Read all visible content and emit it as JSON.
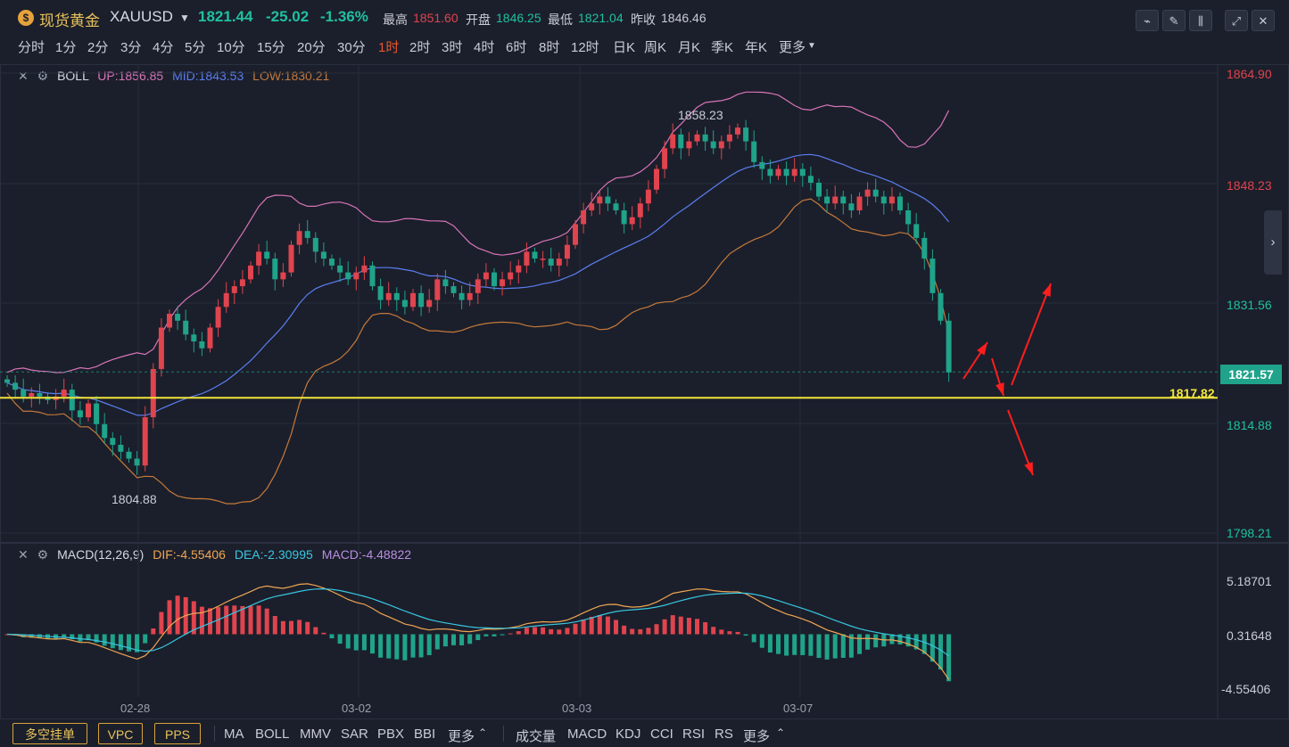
{
  "header": {
    "coin_icon": "coin-icon",
    "name": "现货黄金",
    "symbol": "XAUUSD",
    "price": "1821.44",
    "change": "-25.02",
    "change_pct": "-1.36%",
    "high_label": "最高",
    "high": "1851.60",
    "open_label": "开盘",
    "open": "1846.25",
    "low_label": "最低",
    "low": "1821.04",
    "prev_label": "昨收",
    "prev": "1846.46"
  },
  "toolbar_icons": [
    "indicator-icon",
    "draw-icon",
    "candle-type-icon",
    "fullscreen-icon",
    "close-icon"
  ],
  "timeframes": [
    "分时",
    "1分",
    "2分",
    "3分",
    "4分",
    "5分",
    "10分",
    "15分",
    "20分",
    "30分",
    "1时",
    "2时",
    "3时",
    "4时",
    "6时",
    "8时",
    "12时",
    "日K",
    "周K",
    "月K",
    "季K",
    "年K",
    "更多"
  ],
  "active_timeframe": "1时",
  "boll": {
    "name": "BOLL",
    "up": "UP:1856.85",
    "mid": "MID:1843.53",
    "low": "LOW:1830.21"
  },
  "macd": {
    "name": "MACD(12,26,9)",
    "dif": "DIF:-4.55406",
    "dea": "DEA:-2.30995",
    "macd": "MACD:-4.48822"
  },
  "colors": {
    "up": "#e0444e",
    "down": "#1fa38a",
    "boll_up": "#d874b8",
    "boll_mid": "#5b7ef2",
    "boll_low": "#c6793b",
    "dif": "#f0a552",
    "dea": "#39c6e0",
    "level": "#f2e53a",
    "arrow": "#ff1e1e"
  },
  "chart_data": {
    "type": "candlestick",
    "price_axis": [
      "1864.90",
      "1848.23",
      "1831.56",
      "1814.88",
      "1798.21"
    ],
    "current_price": "1821.57",
    "horizontal_level": "1817.82",
    "high_marker": "1858.23",
    "low_marker": "1804.88",
    "x_ticks": [
      "02-28",
      "03-02",
      "03-03",
      "03-07"
    ],
    "macd_axis": [
      "5.18701",
      "0.31648",
      "-4.55406"
    ],
    "closes": [
      1820,
      1819,
      1818,
      1818.5,
      1818,
      1817.5,
      1818,
      1819,
      1816,
      1815,
      1817,
      1814,
      1812,
      1811,
      1810,
      1809,
      1808,
      1815,
      1822,
      1828,
      1830,
      1829,
      1827,
      1826,
      1825,
      1828,
      1831,
      1833,
      1834,
      1835,
      1837,
      1839,
      1838,
      1835,
      1836,
      1840,
      1842,
      1841,
      1839,
      1838,
      1837,
      1836,
      1835,
      1836,
      1837,
      1834,
      1832,
      1833,
      1832,
      1831,
      1833,
      1831,
      1832,
      1835,
      1834,
      1833,
      1832,
      1833,
      1835,
      1836,
      1834,
      1835,
      1836,
      1837,
      1839,
      1838,
      1838,
      1837,
      1838,
      1840,
      1843,
      1845,
      1846,
      1847,
      1846,
      1845,
      1843,
      1844,
      1846,
      1848,
      1851,
      1854,
      1856,
      1854,
      1855,
      1856,
      1855,
      1854,
      1855,
      1856,
      1857,
      1855,
      1852,
      1851,
      1850,
      1851,
      1850,
      1851,
      1850,
      1849,
      1847,
      1846,
      1847,
      1846,
      1845,
      1847,
      1848,
      1847,
      1846,
      1847,
      1845,
      1843,
      1841,
      1838,
      1833,
      1829,
      1821.5
    ],
    "vol_tags": [
      "",
      "",
      ""
    ]
  },
  "bottom_buttons": [
    "多空挂单",
    "VPC",
    "PPS"
  ],
  "main_indicators": [
    "MA",
    "BOLL",
    "MMV",
    "SAR",
    "PBX",
    "BBI",
    "更多"
  ],
  "sub_indicators": [
    "成交量",
    "MACD",
    "KDJ",
    "CCI",
    "RSI",
    "RS",
    "更多"
  ]
}
